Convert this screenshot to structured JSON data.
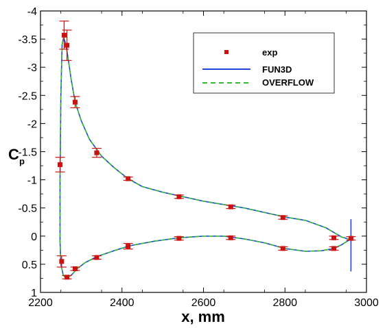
{
  "chart_data": {
    "type": "line",
    "xlabel": "x, mm",
    "ylabel": "C",
    "ylabel_sub": "p",
    "xlim": [
      2200,
      3000
    ],
    "ylim": [
      1,
      -4
    ],
    "y_inverted": true,
    "x_ticks": [
      2200,
      2400,
      2600,
      2800,
      3000
    ],
    "y_ticks": [
      -4,
      -3.5,
      -3,
      -2.5,
      -2,
      -1.5,
      -1,
      -0.5,
      0,
      0.5,
      1
    ],
    "y_tick_labels": [
      "-4",
      "-3.5",
      "-3",
      "-2.5",
      "-2",
      "-1.5",
      "-1",
      "-0.5",
      "0",
      "0.5",
      "1"
    ],
    "grid": false,
    "legend_position": "top-right",
    "series": [
      {
        "name": "exp",
        "style": "markers-with-errorbars",
        "color": "#cc1111",
        "points": [
          {
            "x": 2248,
            "y": -1.27,
            "err": 0.13
          },
          {
            "x": 2258,
            "y": -3.57,
            "err": 0.25
          },
          {
            "x": 2265,
            "y": -3.39,
            "err": 0.27
          },
          {
            "x": 2285,
            "y": -2.38,
            "err": 0.1
          },
          {
            "x": 2338,
            "y": -1.48,
            "err": 0.08
          },
          {
            "x": 2415,
            "y": -1.02,
            "err": 0.03
          },
          {
            "x": 2540,
            "y": -0.7,
            "err": 0.03
          },
          {
            "x": 2667,
            "y": -0.52,
            "err": 0.03
          },
          {
            "x": 2795,
            "y": -0.33,
            "err": 0.03
          },
          {
            "x": 2920,
            "y": 0.03,
            "err": 0.03
          },
          {
            "x": 2962,
            "y": 0.04,
            "err": 0.03
          },
          {
            "x": 2920,
            "y": 0.22,
            "err": 0.03
          },
          {
            "x": 2795,
            "y": 0.22,
            "err": 0.03
          },
          {
            "x": 2667,
            "y": 0.03,
            "err": 0.03
          },
          {
            "x": 2540,
            "y": 0.04,
            "err": 0.03
          },
          {
            "x": 2415,
            "y": 0.18,
            "err": 0.05
          },
          {
            "x": 2338,
            "y": 0.38,
            "err": 0.03
          },
          {
            "x": 2285,
            "y": 0.58,
            "err": 0.03
          },
          {
            "x": 2265,
            "y": 0.73,
            "err": 0.03
          },
          {
            "x": 2252,
            "y": 0.45,
            "err": 0.1
          }
        ]
      },
      {
        "name": "FUN3D",
        "style": "solid",
        "color": "#2244dd",
        "points": [
          [
            2962,
            -0.3
          ],
          [
            2962,
            0.62
          ],
          [
            2962,
            0.05
          ],
          [
            2955,
            0.05
          ],
          [
            2940,
            0.02
          ],
          [
            2900,
            -0.15
          ],
          [
            2850,
            -0.28
          ],
          [
            2800,
            -0.34
          ],
          [
            2750,
            -0.42
          ],
          [
            2700,
            -0.5
          ],
          [
            2650,
            -0.56
          ],
          [
            2600,
            -0.62
          ],
          [
            2550,
            -0.7
          ],
          [
            2500,
            -0.78
          ],
          [
            2450,
            -0.88
          ],
          [
            2415,
            -1.02
          ],
          [
            2380,
            -1.22
          ],
          [
            2350,
            -1.42
          ],
          [
            2320,
            -1.72
          ],
          [
            2300,
            -2.05
          ],
          [
            2285,
            -2.38
          ],
          [
            2275,
            -2.8
          ],
          [
            2268,
            -3.15
          ],
          [
            2262,
            -3.42
          ],
          [
            2257,
            -3.53
          ],
          [
            2253,
            -3.4
          ],
          [
            2250,
            -2.5
          ],
          [
            2248,
            -1.0
          ],
          [
            2248,
            0.1
          ],
          [
            2250,
            0.5
          ],
          [
            2256,
            0.7
          ],
          [
            2262,
            0.74
          ],
          [
            2275,
            0.7
          ],
          [
            2290,
            0.58
          ],
          [
            2310,
            0.47
          ],
          [
            2340,
            0.36
          ],
          [
            2380,
            0.26
          ],
          [
            2420,
            0.17
          ],
          [
            2480,
            0.09
          ],
          [
            2540,
            0.03
          ],
          [
            2600,
            0.0
          ],
          [
            2650,
            0.0
          ],
          [
            2700,
            0.05
          ],
          [
            2750,
            0.12
          ],
          [
            2800,
            0.22
          ],
          [
            2850,
            0.27
          ],
          [
            2890,
            0.26
          ],
          [
            2920,
            0.22
          ],
          [
            2940,
            0.15
          ],
          [
            2955,
            0.08
          ],
          [
            2962,
            0.05
          ]
        ]
      },
      {
        "name": "OVERFLOW",
        "style": "dashed",
        "color": "#33bb33",
        "points": [
          [
            2962,
            0.05
          ],
          [
            2955,
            0.05
          ],
          [
            2940,
            0.02
          ],
          [
            2900,
            -0.15
          ],
          [
            2850,
            -0.28
          ],
          [
            2800,
            -0.34
          ],
          [
            2750,
            -0.42
          ],
          [
            2700,
            -0.5
          ],
          [
            2650,
            -0.56
          ],
          [
            2600,
            -0.62
          ],
          [
            2550,
            -0.7
          ],
          [
            2500,
            -0.78
          ],
          [
            2450,
            -0.88
          ],
          [
            2415,
            -1.02
          ],
          [
            2380,
            -1.22
          ],
          [
            2350,
            -1.42
          ],
          [
            2320,
            -1.72
          ],
          [
            2300,
            -2.05
          ],
          [
            2285,
            -2.38
          ],
          [
            2275,
            -2.8
          ],
          [
            2268,
            -3.15
          ],
          [
            2262,
            -3.42
          ],
          [
            2257,
            -3.53
          ],
          [
            2253,
            -3.4
          ],
          [
            2250,
            -2.5
          ],
          [
            2248,
            -1.0
          ],
          [
            2248,
            0.1
          ],
          [
            2250,
            0.5
          ],
          [
            2256,
            0.7
          ],
          [
            2262,
            0.74
          ],
          [
            2275,
            0.7
          ],
          [
            2290,
            0.58
          ],
          [
            2310,
            0.47
          ],
          [
            2340,
            0.36
          ],
          [
            2380,
            0.26
          ],
          [
            2420,
            0.17
          ],
          [
            2480,
            0.09
          ],
          [
            2540,
            0.03
          ],
          [
            2600,
            0.0
          ],
          [
            2650,
            0.0
          ],
          [
            2700,
            0.05
          ],
          [
            2750,
            0.12
          ],
          [
            2800,
            0.22
          ],
          [
            2850,
            0.27
          ],
          [
            2890,
            0.26
          ],
          [
            2920,
            0.22
          ],
          [
            2940,
            0.15
          ],
          [
            2955,
            0.08
          ],
          [
            2962,
            0.05
          ]
        ]
      }
    ]
  }
}
